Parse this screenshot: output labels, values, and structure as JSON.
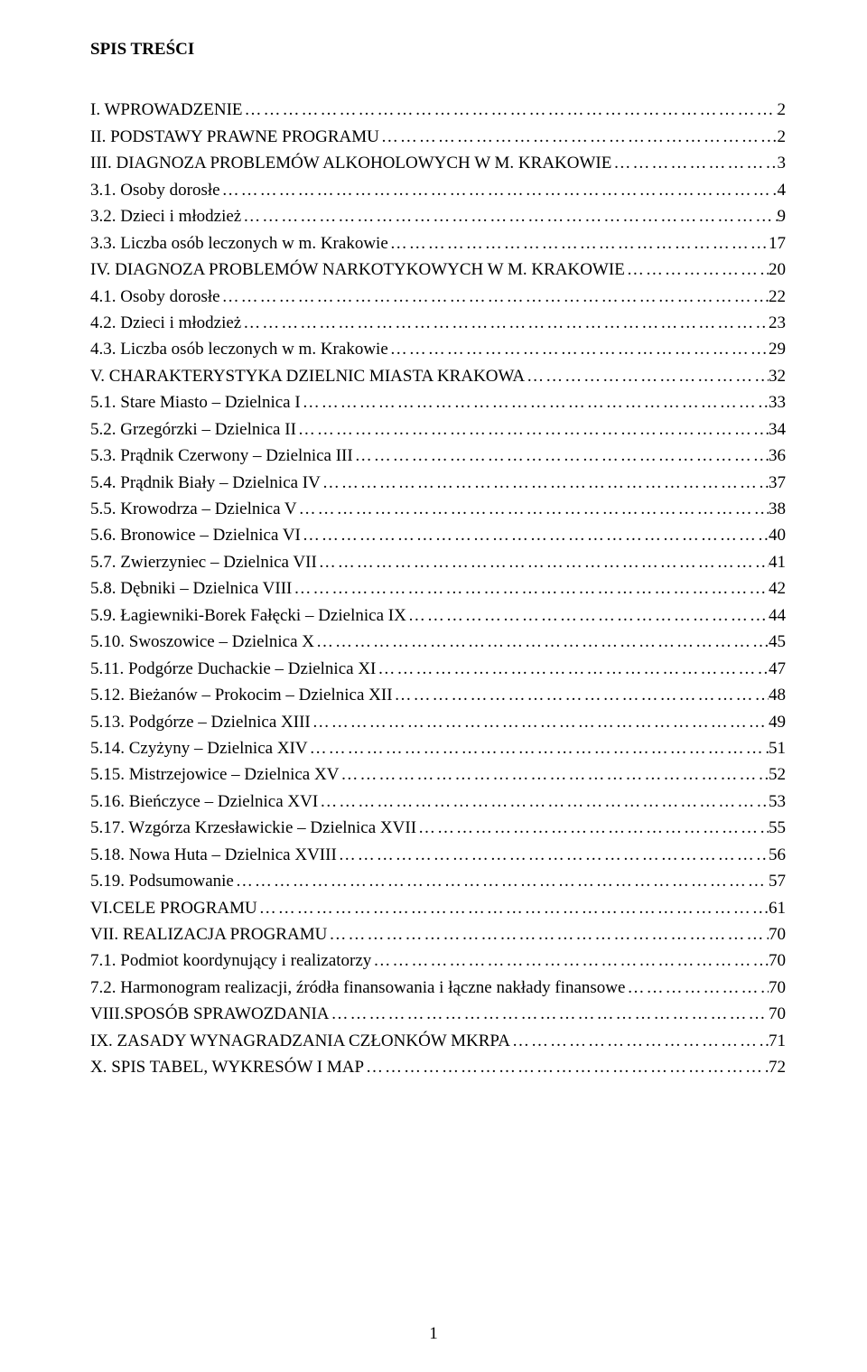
{
  "title": "SPIS TREŚCI",
  "footer_page": "1",
  "toc": [
    {
      "label": "I. WPROWADZENIE",
      "page": "2"
    },
    {
      "label": "II. PODSTAWY PRAWNE PROGRAMU",
      "page": "2"
    },
    {
      "label": "III. DIAGNOZA PROBLEMÓW ALKOHOLOWYCH W M. KRAKOWIE",
      "page": "3"
    },
    {
      "label": "3.1. Osoby dorosłe",
      "page": "4"
    },
    {
      "label": "3.2. Dzieci i młodzież",
      "page": "9"
    },
    {
      "label": "3.3. Liczba osób leczonych w m. Krakowie",
      "page": "17"
    },
    {
      "label": "IV. DIAGNOZA PROBLEMÓW NARKOTYKOWYCH W M. KRAKOWIE",
      "page": "20"
    },
    {
      "label": "4.1. Osoby dorosłe",
      "page": "22"
    },
    {
      "label": "4.2. Dzieci i młodzież",
      "page": "23"
    },
    {
      "label": "4.3. Liczba osób leczonych w m. Krakowie",
      "page": "29"
    },
    {
      "label": "V. CHARAKTERYSTYKA DZIELNIC MIASTA KRAKOWA",
      "page": "32"
    },
    {
      "label": "5.1. Stare Miasto – Dzielnica I",
      "page": "33"
    },
    {
      "label": "5.2. Grzegórzki – Dzielnica II",
      "page": "34"
    },
    {
      "label": "5.3. Prądnik Czerwony – Dzielnica III",
      "page": "36"
    },
    {
      "label": "5.4. Prądnik Biały – Dzielnica IV",
      "page": "37"
    },
    {
      "label": "5.5. Krowodrza – Dzielnica V",
      "page": "38"
    },
    {
      "label": "5.6. Bronowice – Dzielnica VI",
      "page": "40"
    },
    {
      "label": "5.7. Zwierzyniec – Dzielnica VII",
      "page": "41"
    },
    {
      "label": "5.8. Dębniki – Dzielnica VIII",
      "page": "42"
    },
    {
      "label": "5.9. Łagiewniki-Borek Fałęcki – Dzielnica IX",
      "page": "44"
    },
    {
      "label": "5.10. Swoszowice – Dzielnica X",
      "page": "45"
    },
    {
      "label": "5.11. Podgórze Duchackie – Dzielnica XI",
      "page": "47"
    },
    {
      "label": "5.12. Bieżanów – Prokocim – Dzielnica XII",
      "page": "48"
    },
    {
      "label": "5.13. Podgórze – Dzielnica XIII",
      "page": "49"
    },
    {
      "label": "5.14. Czyżyny – Dzielnica XIV",
      "page": "51"
    },
    {
      "label": "5.15. Mistrzejowice – Dzielnica XV",
      "page": "52"
    },
    {
      "label": "5.16. Bieńczyce – Dzielnica XVI",
      "page": "53"
    },
    {
      "label": "5.17. Wzgórza Krzesławickie – Dzielnica XVII",
      "page": "55"
    },
    {
      "label": "5.18. Nowa Huta – Dzielnica XVIII",
      "page": "56"
    },
    {
      "label": "5.19. Podsumowanie",
      "page": "57"
    },
    {
      "label": "VI.CELE PROGRAMU",
      "page": "61"
    },
    {
      "label": "VII. REALIZACJA PROGRAMU",
      "page": "70"
    },
    {
      "label": "7.1. Podmiot koordynujący i realizatorzy",
      "page": "70"
    },
    {
      "label": "7.2. Harmonogram realizacji, źródła finansowania i łączne nakłady finansowe",
      "page": "70"
    },
    {
      "label": "VIII.SPOSÓB SPRAWOZDANIA",
      "page": "70"
    },
    {
      "label": "IX. ZASADY WYNAGRADZANIA CZŁONKÓW MKRPA",
      "page": "71"
    },
    {
      "label": "X. SPIS TABEL, WYKRESÓW I MAP",
      "page": "72"
    }
  ]
}
